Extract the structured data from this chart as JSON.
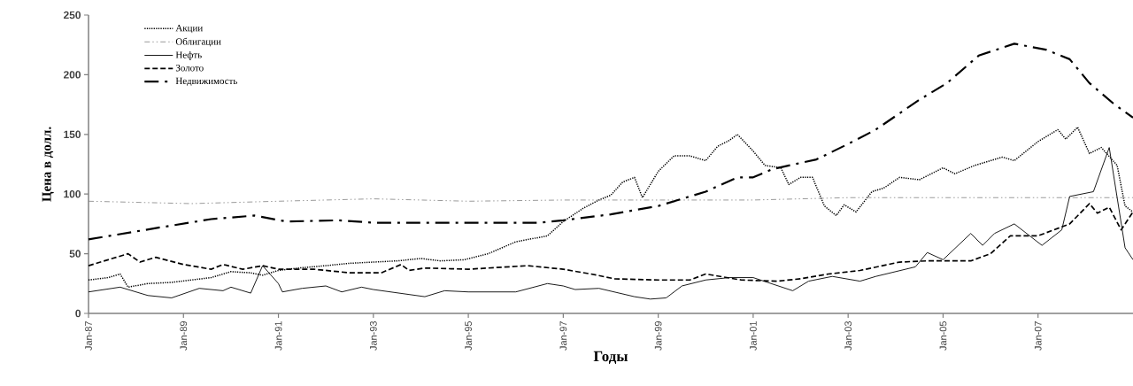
{
  "chart_data": {
    "type": "line",
    "xlabel": "Годы",
    "ylabel": "Цена в долл.",
    "xlim": [
      "1987-01",
      "2009-01"
    ],
    "ylim": [
      0,
      250
    ],
    "yticks": [
      0,
      50,
      100,
      150,
      200,
      250
    ],
    "xticks": [
      {
        "value": "1987-01",
        "label": "Jan-87"
      },
      {
        "value": "1989-01",
        "label": "Jan-89"
      },
      {
        "value": "1991-01",
        "label": "Jan-91"
      },
      {
        "value": "1993-01",
        "label": "Jan-93"
      },
      {
        "value": "1995-01",
        "label": "Jan-95"
      },
      {
        "value": "1997-01",
        "label": "Jan-97"
      },
      {
        "value": "1999-01",
        "label": "Jan-99"
      },
      {
        "value": "2001-01",
        "label": "Jan-01"
      },
      {
        "value": "2003-01",
        "label": "Jan-03"
      },
      {
        "value": "2005-01",
        "label": "Jan-05"
      },
      {
        "value": "2007-01",
        "label": "Jan-07"
      }
    ],
    "legend": "top left",
    "grid": false,
    "marker": "none",
    "series": [
      {
        "name": "Акции",
        "color": "#000000",
        "line_style": "dotted",
        "x": [
          "1987-01",
          "1987-06",
          "1987-09",
          "1987-11",
          "1988-04",
          "1988-10",
          "1989-03",
          "1989-08",
          "1990-01",
          "1990-06",
          "1990-09",
          "1991-01",
          "1991-06",
          "1992-01",
          "1992-07",
          "1993-01",
          "1993-07",
          "1994-01",
          "1994-06",
          "1994-12",
          "1995-06",
          "1996-01",
          "1996-09",
          "1997-01",
          "1997-06",
          "1997-10",
          "1998-01",
          "1998-04",
          "1998-07",
          "1998-09",
          "1999-01",
          "1999-05",
          "1999-09",
          "2000-01",
          "2000-04",
          "2000-07",
          "2000-09",
          "2001-01",
          "2001-04",
          "2001-08",
          "2001-10",
          "2002-01",
          "2002-04",
          "2002-07",
          "2002-10",
          "2002-12",
          "2003-03",
          "2003-07",
          "2003-10",
          "2004-02",
          "2004-07",
          "2005-01",
          "2005-04",
          "2005-09",
          "2006-04",
          "2006-07",
          "2007-01",
          "2007-06",
          "2007-08",
          "2007-11",
          "2008-02",
          "2008-05",
          "2008-09",
          "2008-11",
          "2009-01"
        ],
        "values": [
          28,
          30,
          33,
          22,
          25,
          26,
          28,
          30,
          35,
          34,
          32,
          36,
          38,
          40,
          42,
          43,
          44,
          46,
          44,
          45,
          50,
          60,
          65,
          77,
          88,
          95,
          99,
          110,
          114,
          97,
          119,
          132,
          132,
          128,
          140,
          145,
          150,
          136,
          124,
          122,
          108,
          114,
          114,
          90,
          82,
          91,
          85,
          102,
          105,
          114,
          112,
          122,
          117,
          124,
          131,
          128,
          144,
          154,
          146,
          156,
          134,
          139,
          124,
          90,
          85
        ]
      },
      {
        "name": "Облигации",
        "color": "#808080",
        "line_style": "dashdotdot",
        "x": [
          "1987-01",
          "1989-03",
          "1991-01",
          "1993-01",
          "1995-01",
          "1997-01",
          "1999-01",
          "2001-01",
          "2003-01",
          "2005-01",
          "2007-01",
          "2009-01"
        ],
        "values": [
          94,
          92,
          94,
          96,
          94,
          95,
          95,
          95,
          97,
          97,
          97,
          97
        ]
      },
      {
        "name": "Нефть",
        "color": "#000000",
        "line_style": "solid",
        "x": [
          "1987-01",
          "1987-09",
          "1988-04",
          "1988-10",
          "1989-05",
          "1989-11",
          "1990-01",
          "1990-06",
          "1990-09",
          "1991-01",
          "1991-02",
          "1991-07",
          "1992-01",
          "1992-05",
          "1992-10",
          "1993-01",
          "1994-02",
          "1994-07",
          "1995-01",
          "1996-01",
          "1996-09",
          "1997-01",
          "1997-04",
          "1997-10",
          "1998-07",
          "1998-11",
          "1999-03",
          "1999-07",
          "2000-01",
          "2000-07",
          "2001-01",
          "2001-11",
          "2002-03",
          "2002-09",
          "2003-04",
          "2003-08",
          "2004-06",
          "2004-09",
          "2005-01",
          "2005-08",
          "2005-11",
          "2006-02",
          "2006-07",
          "2007-02",
          "2007-07",
          "2007-09",
          "2008-03",
          "2008-07",
          "2008-11",
          "2009-01"
        ],
        "values": [
          18,
          22,
          15,
          13,
          21,
          19,
          22,
          17,
          40,
          25,
          18,
          21,
          23,
          18,
          22,
          20,
          14,
          19,
          18,
          18,
          25,
          23,
          20,
          21,
          14,
          12,
          13,
          23,
          28,
          30,
          30,
          19,
          27,
          31,
          27,
          31,
          39,
          51,
          45,
          67,
          57,
          67,
          75,
          57,
          70,
          98,
          102,
          139,
          55,
          45
        ]
      },
      {
        "name": "Золото",
        "color": "#000000",
        "line_style": "dashed",
        "x": [
          "1987-01",
          "1987-06",
          "1987-11",
          "1988-02",
          "1988-06",
          "1989-01",
          "1989-08",
          "1989-11",
          "1990-04",
          "1990-09",
          "1991-01",
          "1991-10",
          "1992-07",
          "1993-03",
          "1993-08",
          "1993-10",
          "1994-02",
          "1995-01",
          "1996-04",
          "1997-01",
          "1997-08",
          "1998-02",
          "1999-01",
          "1999-09",
          "2000-01",
          "2000-10",
          "2001-07",
          "2002-01",
          "2002-08",
          "2003-04",
          "2004-02",
          "2004-09",
          "2005-08",
          "2006-01",
          "2006-06",
          "2007-01",
          "2007-09",
          "2008-02",
          "2008-04",
          "2008-07",
          "2008-10",
          "2009-01"
        ],
        "values": [
          40,
          45,
          50,
          43,
          47,
          41,
          37,
          41,
          37,
          40,
          37,
          37,
          34,
          34,
          41,
          36,
          38,
          37,
          40,
          37,
          33,
          29,
          28,
          28,
          33,
          28,
          27,
          29,
          33,
          36,
          43,
          44,
          44,
          50,
          65,
          65,
          75,
          92,
          84,
          89,
          70,
          85
        ]
      },
      {
        "name": "Недвижимость",
        "color": "#000000",
        "line_style": "dashdot",
        "x": [
          "1987-01",
          "1988-07",
          "1989-08",
          "1990-07",
          "1991-03",
          "1992-04",
          "1993-01",
          "1996-07",
          "1997-01",
          "1998-01",
          "1999-01",
          "2000-01",
          "2000-09",
          "2001-01",
          "2001-06",
          "2002-05",
          "2003-01",
          "2003-08",
          "2004-07",
          "2005-02",
          "2005-10",
          "2006-07",
          "2007-03",
          "2007-09",
          "2008-02",
          "2008-08",
          "2009-01"
        ],
        "values": [
          62,
          72,
          79,
          82,
          77,
          78,
          76,
          76,
          78,
          83,
          90,
          102,
          114,
          114,
          121,
          129,
          142,
          154,
          179,
          193,
          216,
          226,
          221,
          213,
          193,
          176,
          164
        ]
      }
    ]
  }
}
